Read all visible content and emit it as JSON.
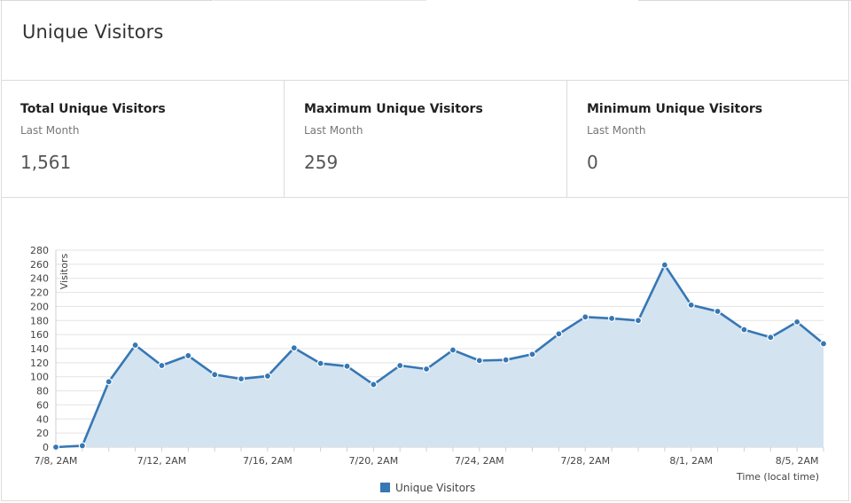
{
  "panel": {
    "title": "Unique Visitors"
  },
  "stats": [
    {
      "label": "Total Unique Visitors",
      "period": "Last Month",
      "value": "1,561"
    },
    {
      "label": "Maximum Unique Visitors",
      "period": "Last Month",
      "value": "259"
    },
    {
      "label": "Minimum Unique Visitors",
      "period": "Last Month",
      "value": "0"
    }
  ],
  "chart_data": {
    "type": "area",
    "ylabel": "Visitors",
    "xlabel": "Time (local time)",
    "ylim": [
      0,
      280
    ],
    "yticks": [
      0,
      20,
      40,
      60,
      80,
      100,
      120,
      140,
      160,
      180,
      200,
      220,
      240,
      260,
      280
    ],
    "xticks": [
      "7/8, 2AM",
      "7/12, 2AM",
      "7/16, 2AM",
      "7/20, 2AM",
      "7/24, 2AM",
      "7/28, 2AM",
      "8/1, 2AM",
      "8/5, 2AM"
    ],
    "x": [
      "7/8",
      "7/9",
      "7/10",
      "7/11",
      "7/12",
      "7/13",
      "7/14",
      "7/15",
      "7/16",
      "7/17",
      "7/18",
      "7/19",
      "7/20",
      "7/21",
      "7/22",
      "7/23",
      "7/24",
      "7/25",
      "7/26",
      "7/27",
      "7/28",
      "7/29",
      "7/30",
      "7/31",
      "8/1",
      "8/2",
      "8/3",
      "8/4",
      "8/5",
      "8/6"
    ],
    "series": [
      {
        "name": "Unique Visitors",
        "color": "#3677b4",
        "fill": "#d3e3f0",
        "values": [
          0,
          2,
          93,
          145,
          116,
          130,
          103,
          97,
          101,
          141,
          119,
          115,
          89,
          116,
          111,
          138,
          123,
          124,
          132,
          161,
          185,
          183,
          180,
          259,
          202,
          193,
          167,
          156,
          178,
          147
        ]
      }
    ],
    "grid": true,
    "legend": "bottom-center"
  }
}
